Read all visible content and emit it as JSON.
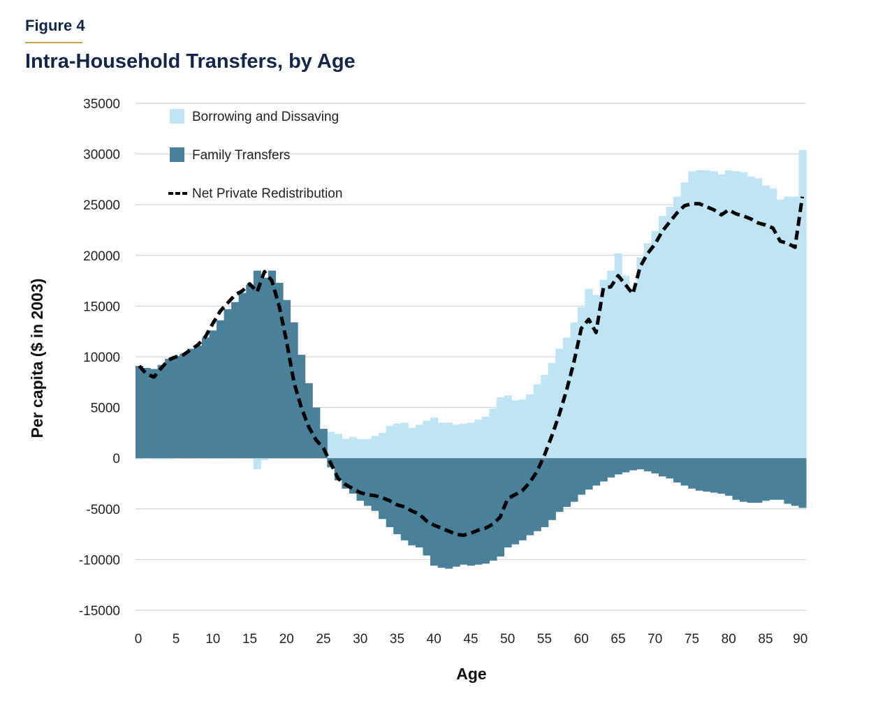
{
  "figure": {
    "label": "Figure 4",
    "title": "Intra-Household Transfers, by Age"
  },
  "colors": {
    "borrowing": "#bfe5f5",
    "family": "#4a8099",
    "line": "#000000",
    "grid": "#cccccc",
    "accent": "#c9a14a",
    "title": "#13254a"
  },
  "chart_data": {
    "type": "bar",
    "title": "Intra-Household Transfers, by Age",
    "xlabel": "Age",
    "ylabel": "Per capita ($ in 2003)",
    "xlim": [
      0,
      90
    ],
    "ylim": [
      -15000,
      35000
    ],
    "xticks": [
      0,
      5,
      10,
      15,
      20,
      25,
      30,
      35,
      40,
      45,
      50,
      55,
      60,
      65,
      70,
      75,
      80,
      85,
      90
    ],
    "xtick_labels": [
      "0",
      "5",
      "10",
      "15",
      "20",
      "25",
      "30",
      "35",
      "40",
      "45",
      "50",
      "55",
      "60",
      "65",
      "70",
      "75",
      "80",
      "85",
      "90"
    ],
    "yticks": [
      35000,
      30000,
      25000,
      20000,
      15000,
      10000,
      5000,
      0,
      -5000,
      -10000,
      -15000
    ],
    "ytick_labels": [
      "35000",
      "30000",
      "25000",
      "20000",
      "15000",
      "10000",
      "5000",
      "0",
      "-5000",
      "-10000",
      "-15000"
    ],
    "legend": {
      "position": "top-left",
      "entries": [
        "Borrowing and Dissaving",
        "Family Transfers",
        "Net Private Redistribution"
      ]
    },
    "ages": [
      0,
      1,
      2,
      3,
      4,
      5,
      6,
      7,
      8,
      9,
      10,
      11,
      12,
      13,
      14,
      15,
      16,
      17,
      18,
      19,
      20,
      21,
      22,
      23,
      24,
      25,
      26,
      27,
      28,
      29,
      30,
      31,
      32,
      33,
      34,
      35,
      36,
      37,
      38,
      39,
      40,
      41,
      42,
      43,
      44,
      45,
      46,
      47,
      48,
      49,
      50,
      51,
      52,
      53,
      54,
      55,
      56,
      57,
      58,
      59,
      60,
      61,
      62,
      63,
      64,
      65,
      66,
      67,
      68,
      69,
      70,
      71,
      72,
      73,
      74,
      75,
      76,
      77,
      78,
      79,
      80,
      81,
      82,
      83,
      84,
      85,
      86,
      87,
      88,
      89,
      90
    ],
    "series": [
      {
        "name": "Borrowing and Dissaving",
        "values": [
          -100,
          0,
          -100,
          -100,
          -100,
          100,
          150,
          200,
          150,
          100,
          50,
          0,
          100,
          200,
          300,
          250,
          -1100,
          -200,
          2700,
          4500,
          3800,
          3700,
          3100,
          2900,
          2800,
          2700,
          2600,
          2400,
          1900,
          2100,
          1900,
          1900,
          2200,
          2500,
          3200,
          3400,
          3500,
          3000,
          3300,
          3700,
          4000,
          3500,
          3500,
          3300,
          3400,
          3500,
          3800,
          4100,
          4900,
          6000,
          6200,
          5700,
          5800,
          6300,
          7300,
          8200,
          9400,
          10800,
          11900,
          13400,
          14900,
          16700,
          16100,
          17600,
          18500,
          20200,
          18000,
          16700,
          19800,
          21200,
          22400,
          23900,
          24800,
          25800,
          27200,
          28300,
          28400,
          28400,
          28300,
          28000,
          28400,
          28300,
          28200,
          27800,
          27600,
          26900,
          26600,
          25500,
          25800,
          25800,
          30400
        ]
      },
      {
        "name": "Family Transfers",
        "values": [
          9100,
          8900,
          8800,
          9200,
          9800,
          10100,
          10300,
          10800,
          11100,
          11900,
          12600,
          13600,
          14700,
          15400,
          16300,
          17100,
          18500,
          17800,
          18500,
          17300,
          15600,
          13400,
          10200,
          7400,
          5000,
          2900,
          -900,
          -2200,
          -3000,
          -3500,
          -4200,
          -4700,
          -5200,
          -6000,
          -6800,
          -7500,
          -8100,
          -8600,
          -8800,
          -9600,
          -10600,
          -10800,
          -10900,
          -10700,
          -10500,
          -10600,
          -10500,
          -10400,
          -10100,
          -9700,
          -8800,
          -8500,
          -8100,
          -7600,
          -7200,
          -6800,
          -6100,
          -5300,
          -4800,
          -4300,
          -3600,
          -3100,
          -2700,
          -2300,
          -1900,
          -1600,
          -1400,
          -1200,
          -1100,
          -1300,
          -1500,
          -1800,
          -2000,
          -2400,
          -2700,
          -3000,
          -3200,
          -3300,
          -3400,
          -3500,
          -3700,
          -4100,
          -4300,
          -4400,
          -4400,
          -4200,
          -4100,
          -4100,
          -4500,
          -4700,
          -4900
        ]
      },
      {
        "name": "Net Private Redistribution",
        "values": [
          9100,
          8300,
          8000,
          8900,
          9700,
          10000,
          10200,
          10700,
          11200,
          12000,
          13300,
          14500,
          15300,
          16100,
          16500,
          17200,
          16400,
          18400,
          17500,
          15000,
          11500,
          7500,
          5000,
          3100,
          1800,
          1000,
          -500,
          -2000,
          -2600,
          -3000,
          -3400,
          -3600,
          -3700,
          -3900,
          -4200,
          -4600,
          -4800,
          -5200,
          -5500,
          -6200,
          -6600,
          -6900,
          -7200,
          -7500,
          -7600,
          -7400,
          -7100,
          -6900,
          -6500,
          -5800,
          -4000,
          -3600,
          -3200,
          -2400,
          -1300,
          300,
          2200,
          4300,
          6700,
          9500,
          12800,
          13700,
          12400,
          16800,
          16900,
          18000,
          17100,
          16200,
          18900,
          20200,
          21100,
          22400,
          23300,
          24200,
          24900,
          25100,
          25100,
          24800,
          24500,
          24000,
          24500,
          24100,
          23900,
          23600,
          23200,
          23000,
          22700,
          21400,
          21200,
          20800,
          25800
        ]
      }
    ]
  }
}
